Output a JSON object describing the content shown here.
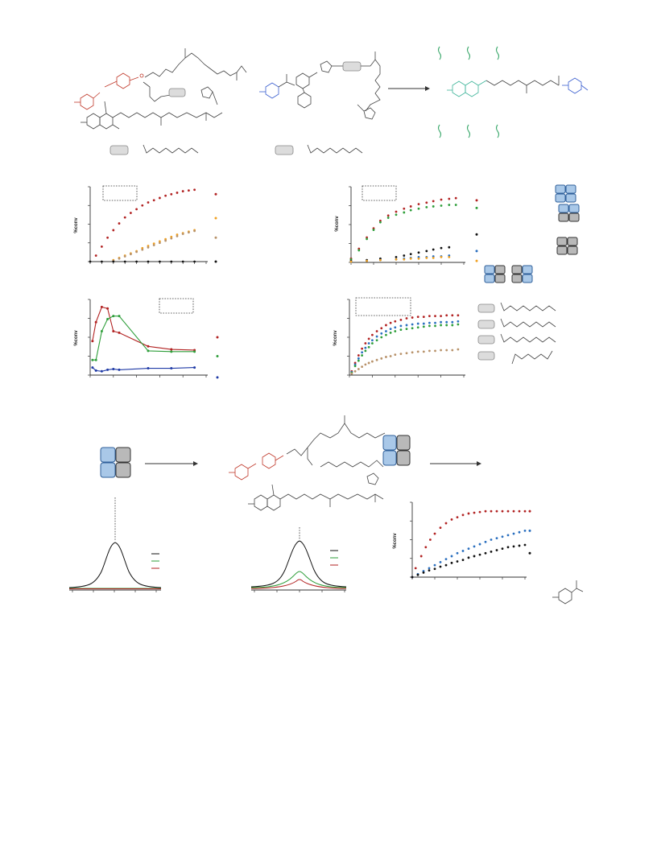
{
  "colors": {
    "red": "#b22222",
    "orange": "#f0a020",
    "tan": "#b8926a",
    "black": "#111111",
    "green": "#2e9e3a",
    "blue": "#1f3aa6",
    "blue2": "#2a6fbf"
  },
  "texts": {
    "ylabel_conv": "%conv"
  },
  "chart_data": [
    {
      "type": "scatter",
      "id": "chart-a",
      "ylabel": "%conv",
      "xlim": [
        0,
        10
      ],
      "ylim": [
        0,
        100
      ],
      "series": [
        {
          "color": "red",
          "x": [
            0.5,
            1,
            1.5,
            2,
            2.5,
            3,
            3.5,
            4,
            4.5,
            5,
            5.5,
            6,
            6.5,
            7,
            7.5,
            8,
            8.5,
            9
          ],
          "y": [
            8,
            20,
            32,
            42,
            51,
            59,
            65,
            70,
            75,
            79,
            82,
            85,
            88,
            90,
            92,
            94,
            95,
            96
          ]
        },
        {
          "color": "orange",
          "x": [
            2,
            2.5,
            3,
            3.5,
            4,
            4.5,
            5,
            5.5,
            6,
            6.5,
            7,
            7.5,
            8,
            8.5,
            9
          ],
          "y": [
            2,
            5,
            8,
            11,
            14,
            18,
            21,
            24,
            27,
            30,
            33,
            36,
            38,
            40,
            42
          ]
        },
        {
          "color": "tan",
          "x": [
            2,
            2.5,
            3,
            3.5,
            4,
            4.5,
            5,
            5.5,
            6,
            6.5,
            7,
            7.5,
            8,
            8.5,
            9
          ],
          "y": [
            1,
            4,
            7,
            10,
            13,
            16,
            19,
            22,
            25,
            28,
            31,
            34,
            37,
            39,
            41
          ]
        },
        {
          "color": "black",
          "x": [
            0,
            1,
            2,
            3,
            4,
            5,
            6,
            7,
            8,
            9
          ],
          "y": [
            0,
            0,
            0,
            0,
            0,
            0,
            0,
            0,
            0,
            0
          ]
        }
      ],
      "end_marks": [
        {
          "color": "red",
          "y": 90
        },
        {
          "color": "orange",
          "y": 58
        },
        {
          "color": "tan",
          "y": 32
        },
        {
          "color": "black",
          "y": 0
        }
      ]
    },
    {
      "type": "scatter",
      "id": "chart-b",
      "ylabel": "%conv",
      "xlim": [
        0,
        10
      ],
      "ylim": [
        0,
        100
      ],
      "series": [
        {
          "color": "red",
          "x": [
            0,
            0.7,
            1.4,
            2,
            2.6,
            3.3,
            4,
            4.7,
            5.3,
            6,
            6.7,
            7.3,
            8,
            8.7,
            9.3
          ],
          "y": [
            5,
            18,
            33,
            45,
            55,
            62,
            67,
            71,
            74,
            77,
            79,
            81,
            83,
            84,
            85
          ]
        },
        {
          "color": "green",
          "x": [
            0,
            0.7,
            1.4,
            2,
            2.6,
            3.3,
            4,
            4.7,
            5.3,
            6,
            6.7,
            7.3,
            8,
            8.7,
            9.3
          ],
          "y": [
            4,
            16,
            31,
            43,
            53,
            59,
            63,
            66,
            69,
            71,
            73,
            74,
            75,
            76,
            76
          ]
        },
        {
          "color": "black",
          "x": [
            0,
            1.4,
            2.6,
            4,
            4.7,
            5.3,
            6,
            6.7,
            7.3,
            8,
            8.7
          ],
          "y": [
            2,
            3,
            5,
            7,
            9,
            11,
            13,
            15,
            17,
            19,
            20
          ]
        },
        {
          "color": "blue2",
          "x": [
            0,
            1.4,
            2.6,
            4,
            4.7,
            5.3,
            6,
            6.7,
            7.3,
            8,
            8.7
          ],
          "y": [
            1,
            2,
            3,
            4,
            5,
            6,
            7,
            7,
            8,
            8,
            9
          ]
        },
        {
          "color": "orange",
          "x": [
            0,
            1.4,
            2.6,
            4,
            4.7,
            5.3,
            6,
            6.7,
            7.3,
            8,
            8.7
          ],
          "y": [
            1,
            2,
            3,
            4,
            4,
            5,
            5,
            6,
            6,
            7,
            7
          ]
        }
      ],
      "end_marks": [
        {
          "color": "red",
          "y": 82
        },
        {
          "color": "green",
          "y": 72
        },
        {
          "color": "black",
          "y": 37
        },
        {
          "color": "blue2",
          "y": 15
        },
        {
          "color": "orange",
          "y": 2
        }
      ]
    },
    {
      "type": "line",
      "id": "chart-c",
      "ylabel": "%conv",
      "xlim": [
        0,
        10
      ],
      "ylim": [
        0,
        100
      ],
      "series": [
        {
          "color": "red",
          "x": [
            0.2,
            0.5,
            1,
            1.5,
            2,
            2.5,
            5,
            7,
            9
          ],
          "y": [
            45,
            70,
            90,
            88,
            58,
            56,
            38,
            34,
            33
          ]
        },
        {
          "color": "green",
          "x": [
            0.2,
            0.5,
            1,
            1.5,
            2,
            2.5,
            5,
            7,
            9
          ],
          "y": [
            20,
            20,
            58,
            74,
            78,
            78,
            32,
            31,
            31
          ]
        },
        {
          "color": "blue",
          "x": [
            0.2,
            0.5,
            1,
            1.5,
            2,
            2.5,
            5,
            7,
            9
          ],
          "y": [
            10,
            6,
            5,
            7,
            8,
            7,
            9,
            9,
            10
          ]
        }
      ],
      "end_marks": [
        {
          "color": "red",
          "y": 50
        },
        {
          "color": "green",
          "y": 25
        },
        {
          "color": "blue",
          "y": -3
        }
      ]
    },
    {
      "type": "scatter",
      "id": "chart-d",
      "ylabel": "%conv",
      "xlim": [
        0,
        10
      ],
      "ylim": [
        0,
        100
      ],
      "series": [
        {
          "color": "red",
          "x": [
            0.2,
            0.5,
            0.8,
            1.1,
            1.4,
            1.7,
            2,
            2.4,
            2.8,
            3.2,
            3.6,
            4,
            4.5,
            5,
            5.5,
            6,
            6.5,
            7,
            7.5,
            8,
            8.5,
            9,
            9.5
          ],
          "y": [
            5,
            16,
            26,
            35,
            42,
            48,
            53,
            58,
            62,
            66,
            69,
            71,
            73,
            75,
            76,
            77,
            77,
            78,
            78,
            78,
            79,
            79,
            79
          ]
        },
        {
          "color": "blue2",
          "x": [
            0.2,
            0.5,
            0.8,
            1.1,
            1.4,
            1.7,
            2,
            2.4,
            2.8,
            3.2,
            3.6,
            4,
            4.5,
            5,
            5.5,
            6,
            6.5,
            7,
            7.5,
            8,
            8.5,
            9,
            9.5
          ],
          "y": [
            4,
            14,
            22,
            30,
            36,
            42,
            46,
            51,
            55,
            58,
            61,
            63,
            65,
            66,
            67,
            68,
            68,
            69,
            69,
            70,
            70,
            70,
            71
          ]
        },
        {
          "color": "green",
          "x": [
            0.2,
            0.5,
            0.8,
            1.1,
            1.4,
            1.7,
            2,
            2.4,
            2.8,
            3.2,
            3.6,
            4,
            4.5,
            5,
            5.5,
            6,
            6.5,
            7,
            7.5,
            8,
            8.5,
            9,
            9.5
          ],
          "y": [
            3,
            12,
            19,
            26,
            32,
            37,
            42,
            46,
            50,
            53,
            56,
            58,
            60,
            61,
            62,
            63,
            64,
            65,
            65,
            66,
            66,
            66,
            67
          ]
        },
        {
          "color": "tan",
          "x": [
            0.2,
            0.5,
            0.8,
            1.1,
            1.4,
            1.7,
            2,
            2.4,
            2.8,
            3.2,
            3.6,
            4,
            4.5,
            5,
            5.5,
            6,
            6.5,
            7,
            7.5,
            8,
            8.5,
            9,
            9.5
          ],
          "y": [
            2,
            5,
            8,
            11,
            14,
            16,
            18,
            20,
            22,
            24,
            25,
            27,
            28,
            29,
            30,
            31,
            31,
            32,
            32,
            33,
            33,
            33,
            34
          ]
        }
      ],
      "end_marks": []
    },
    {
      "type": "scatter",
      "id": "chart-e",
      "ylabel": "%conv",
      "xlim": [
        0,
        10
      ],
      "ylim": [
        0,
        100
      ],
      "series": [
        {
          "color": "red",
          "x": [
            0,
            0.3,
            0.8,
            1.2,
            1.6,
            2,
            2.5,
            3,
            3.5,
            4,
            4.5,
            5,
            5.5,
            6,
            6.5,
            7,
            7.5,
            8,
            8.5,
            9,
            9.5,
            10
          ],
          "y": [
            0,
            12,
            28,
            40,
            50,
            58,
            66,
            72,
            77,
            80,
            83,
            85,
            86,
            87,
            88,
            88,
            88,
            88,
            88,
            88,
            88,
            88
          ]
        },
        {
          "color": "blue2",
          "x": [
            0,
            0.5,
            1,
            1.5,
            2,
            2.5,
            3,
            3.5,
            4,
            4.5,
            5,
            5.5,
            6,
            6.5,
            7,
            7.5,
            8,
            8.5,
            9,
            9.5,
            10
          ],
          "y": [
            0,
            4,
            8,
            12,
            16,
            20,
            24,
            28,
            32,
            35,
            38,
            41,
            44,
            47,
            50,
            52,
            54,
            56,
            58,
            60,
            62
          ]
        },
        {
          "color": "black",
          "x": [
            0,
            0.5,
            1,
            1.5,
            2,
            2.5,
            3,
            3.5,
            4,
            4.5,
            5,
            5.5,
            6,
            6.5,
            7,
            7.5,
            8,
            8.5,
            9,
            9.5,
            10
          ],
          "y": [
            0,
            3,
            6,
            9,
            11,
            14,
            16,
            19,
            21,
            23,
            26,
            28,
            30,
            32,
            34,
            36,
            38,
            40,
            41,
            42,
            43
          ]
        }
      ],
      "end_marks": [
        {
          "color": "red",
          "y": 88
        },
        {
          "color": "blue2",
          "y": 62
        },
        {
          "color": "black",
          "y": 32
        }
      ]
    }
  ]
}
